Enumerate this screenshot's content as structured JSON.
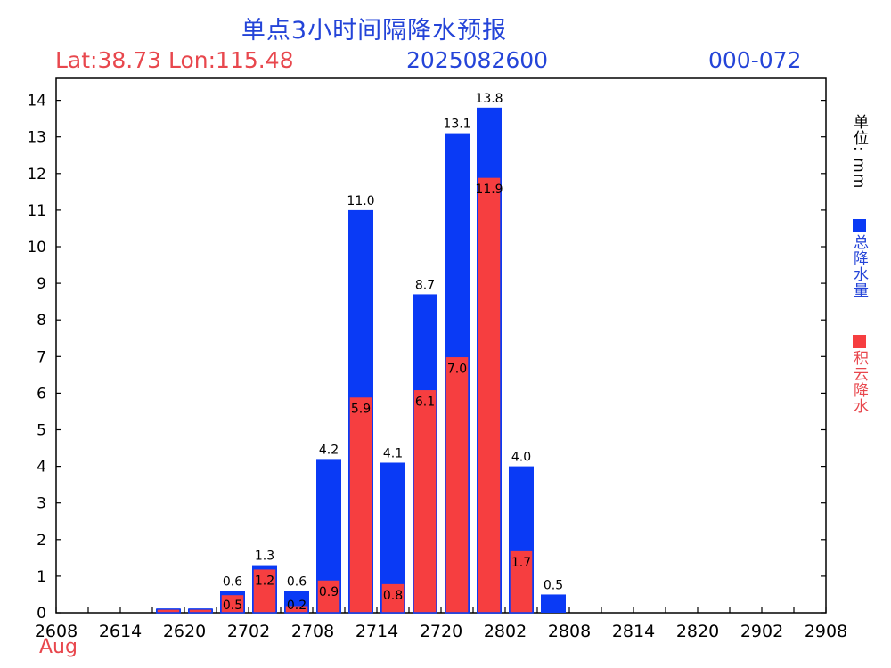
{
  "header": {
    "title": "单点3小时间隔降水预报",
    "latlon": "Lat:38.73 Lon:115.48",
    "init_time": "2025082600",
    "forecast_range": "000-072",
    "month_label": "Aug"
  },
  "side": {
    "unit": "单位: mm",
    "legend_total": "总降水量",
    "legend_convective": "积云降水"
  },
  "colors": {
    "total": "#0a3af5",
    "convective": "#f63e40",
    "text_blue": "#2444d8",
    "text_red": "#e8474d"
  },
  "chart_data": {
    "type": "bar",
    "ylim": [
      0,
      14.5
    ],
    "yticks": [
      0,
      1,
      2,
      3,
      4,
      5,
      6,
      7,
      8,
      9,
      10,
      11,
      12,
      13,
      14
    ],
    "xticklabels": [
      "2608",
      "2614",
      "2620",
      "2702",
      "2708",
      "2714",
      "2720",
      "2802",
      "2808",
      "2814",
      "2820",
      "2902",
      "2908"
    ],
    "categories": [
      "2608",
      "2611",
      "2614",
      "2617",
      "2620",
      "2623",
      "2702",
      "2705",
      "2708",
      "2711",
      "2714",
      "2717",
      "2720",
      "2723",
      "2802",
      "2805",
      "2808",
      "2811",
      "2814",
      "2817",
      "2820",
      "2823",
      "2902",
      "2905"
    ],
    "series": [
      {
        "name": "总降水量",
        "values": [
          0,
          0,
          0,
          0.1,
          0.1,
          0.6,
          1.3,
          0.6,
          4.2,
          11.0,
          4.1,
          8.7,
          13.1,
          13.8,
          4.0,
          0.5,
          0,
          0,
          0,
          0,
          0,
          0,
          0,
          0
        ]
      },
      {
        "name": "积云降水",
        "values": [
          0,
          0,
          0,
          0.1,
          0.1,
          0.5,
          1.2,
          0.2,
          0.9,
          5.9,
          0.8,
          6.1,
          7.0,
          11.9,
          1.7,
          0,
          0,
          0,
          0,
          0,
          0,
          0,
          0,
          0
        ]
      }
    ],
    "total_labels": [
      "",
      "",
      "",
      "",
      "",
      "0.6",
      "1.3",
      "0.6",
      "4.2",
      "11.0",
      "4.1",
      "8.7",
      "13.1",
      "13.8",
      "4.0",
      "0.5",
      "",
      "",
      "",
      "",
      "",
      "",
      "",
      ""
    ],
    "convective_labels": [
      "",
      "",
      "",
      "",
      "",
      "0.5",
      "1.2",
      "0.2",
      "0.9",
      "5.9",
      "0.8",
      "6.1",
      "7.0",
      "11.9",
      "1.7",
      "",
      "",
      "",
      "",
      "",
      "",
      "",
      "",
      ""
    ]
  }
}
